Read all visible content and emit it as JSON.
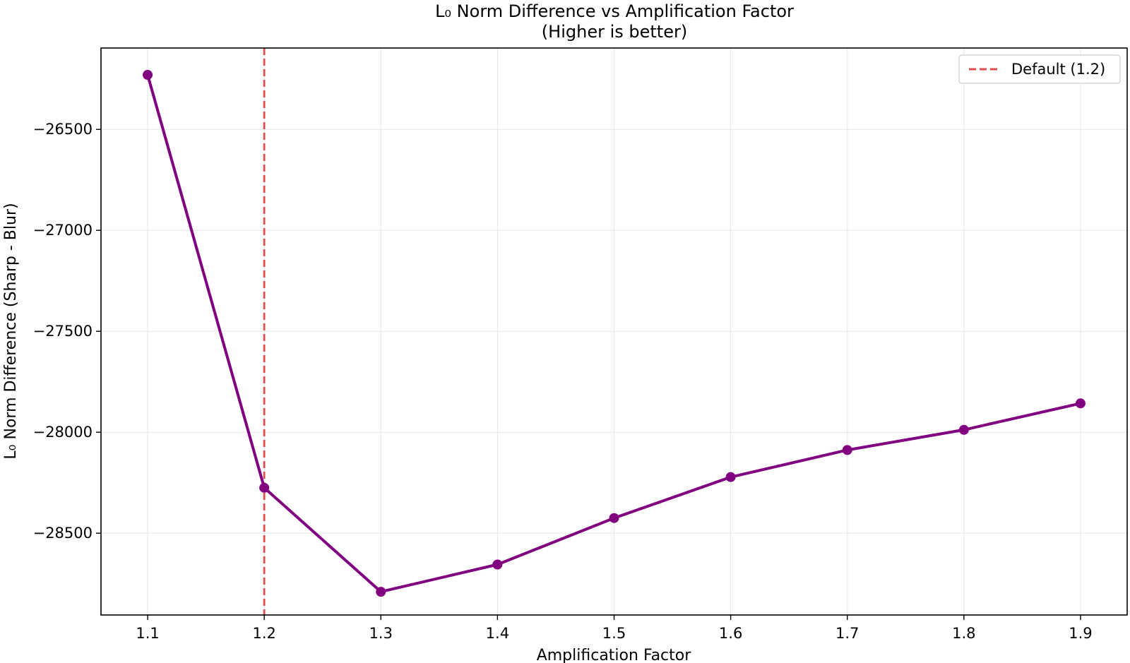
{
  "chart_data": {
    "type": "line",
    "title": "L₀ Norm Difference vs Amplification Factor",
    "subtitle": "(Higher is better)",
    "xlabel": "Amplification Factor",
    "ylabel": "L₀ Norm Difference (Sharp - Blur)",
    "x": [
      1.1,
      1.2,
      1.3,
      1.4,
      1.5,
      1.6,
      1.7,
      1.8,
      1.9
    ],
    "series": [
      {
        "values": [
          -26230,
          -28275,
          -28790,
          -28655,
          -28425,
          -28222,
          -28088,
          -27988,
          -27857
        ],
        "color": "#800080"
      }
    ],
    "xticks": [
      "1.1",
      "1.2",
      "1.3",
      "1.4",
      "1.5",
      "1.6",
      "1.7",
      "1.8",
      "1.9"
    ],
    "yticks": [
      -26500,
      -27000,
      -27500,
      -28000,
      -28500
    ],
    "ytick_labels": [
      "−26500",
      "−27000",
      "−27500",
      "−28000",
      "−28500"
    ],
    "xlim": [
      1.06,
      1.94
    ],
    "ylim": [
      -28905,
      -26097
    ],
    "grid": true,
    "reference_line": {
      "x": 1.2,
      "label": "Default (1.2)",
      "color": "#e05050",
      "style": "dashed"
    },
    "legend": {
      "position": "top-right",
      "entries": [
        "Default (1.2)"
      ]
    }
  }
}
